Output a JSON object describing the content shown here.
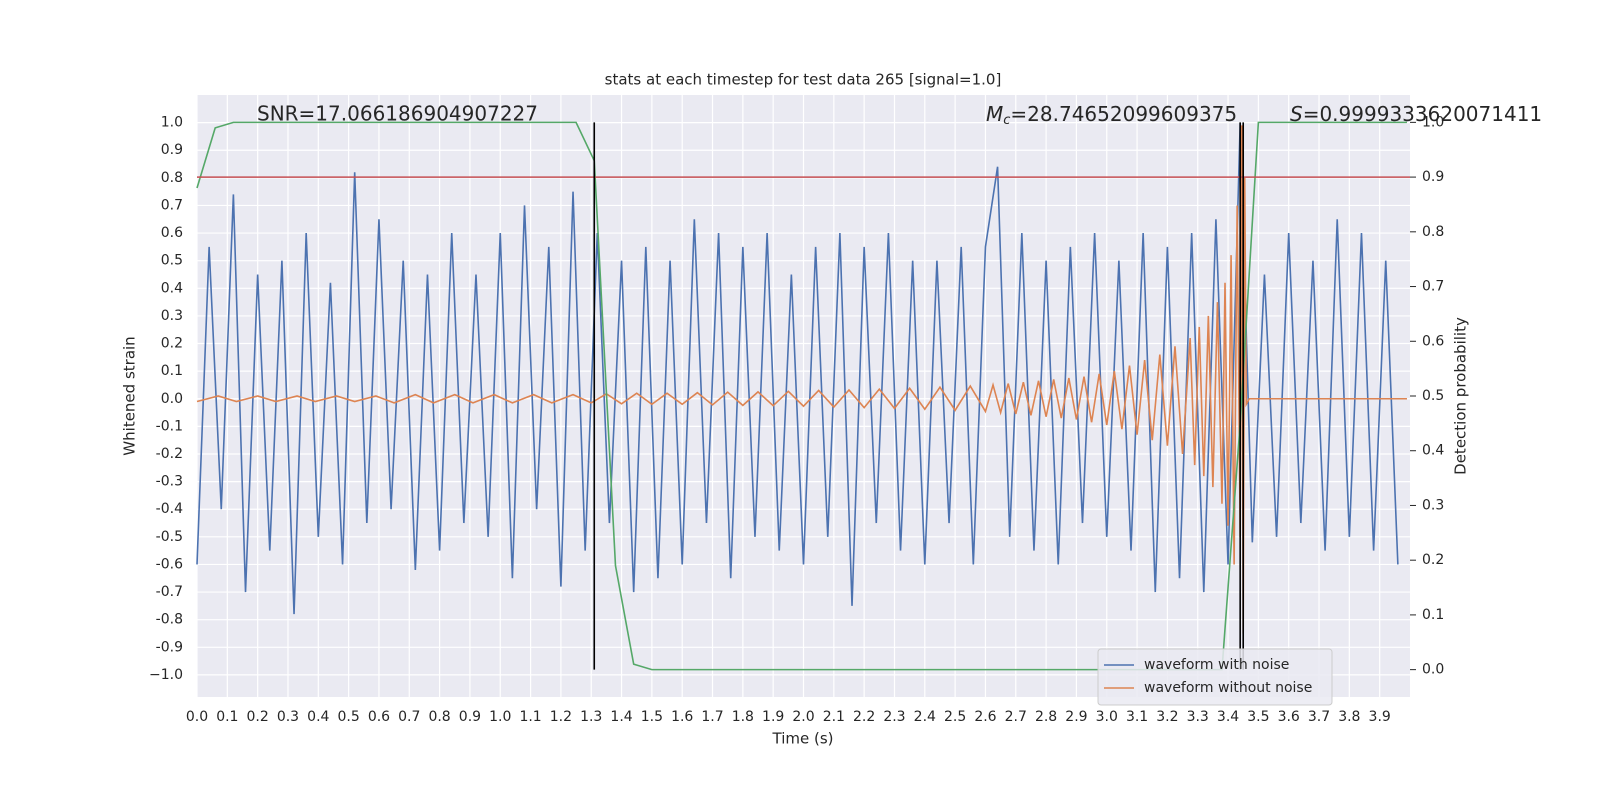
{
  "chart_data": {
    "type": "line",
    "title": "stats at each timestep for test data 265 [signal=1.0]",
    "x_label": "Time (s)",
    "y_label": "Whitened strain",
    "y2_label": "Detection probability",
    "xlim": [
      0,
      4.0
    ],
    "ylim": [
      -1.08,
      1.1
    ],
    "y2lim": [
      -0.05,
      1.05
    ],
    "xticks": [
      {
        "value": 0,
        "label": "0.0"
      },
      0.1,
      0.2,
      0.3,
      0.4,
      0.5,
      0.6,
      0.7,
      0.8,
      0.9,
      {
        "value": 1,
        "label": "1.0"
      },
      1.1,
      1.2,
      1.3,
      1.4,
      1.5,
      1.6,
      1.7,
      1.8,
      1.9,
      {
        "value": 2,
        "label": "2.0"
      },
      2.1,
      2.2,
      2.3,
      2.4,
      2.5,
      2.6,
      2.7,
      2.8,
      2.9,
      {
        "value": 3,
        "label": "3.0"
      },
      3.1,
      3.2,
      3.3,
      3.4,
      3.5,
      3.6,
      3.7,
      3.8,
      3.9
    ],
    "yticks": [
      {
        "value": -1,
        "label": "−1.0"
      },
      -0.9,
      -0.8,
      -0.7,
      -0.6,
      -0.5,
      -0.4,
      -0.3,
      -0.2,
      -0.1,
      {
        "value": 0,
        "label": "0.0"
      },
      0.1,
      0.2,
      0.3,
      0.4,
      0.5,
      0.6,
      0.7,
      0.8,
      0.9,
      {
        "value": 1,
        "label": "1.0"
      }
    ],
    "y2ticks": [
      {
        "value": 0,
        "label": "0.0"
      },
      0.1,
      0.2,
      0.3,
      0.4,
      0.5,
      0.6,
      0.7,
      0.8,
      0.9,
      {
        "value": 1,
        "label": "1.0"
      }
    ],
    "grid": true,
    "legend": "lower right",
    "series": [
      {
        "name": "waveform with noise",
        "color": "#4c72b0",
        "x": [
          0,
          0.04,
          0.08,
          0.12,
          0.16,
          0.2,
          0.24,
          0.28,
          0.32,
          0.36,
          0.4,
          0.44,
          0.48,
          0.52,
          0.56,
          0.6,
          0.64,
          0.68,
          0.72,
          0.76,
          0.8,
          0.84,
          0.88,
          0.92,
          0.96,
          1,
          1.04,
          1.08,
          1.12,
          1.16,
          1.2,
          1.24,
          1.28,
          1.32,
          1.36,
          1.4,
          1.44,
          1.48,
          1.52,
          1.56,
          1.6,
          1.64,
          1.68,
          1.72,
          1.76,
          1.8,
          1.84,
          1.88,
          1.92,
          1.96,
          2,
          2.04,
          2.08,
          2.12,
          2.16,
          2.2,
          2.24,
          2.28,
          2.32,
          2.36,
          2.4,
          2.44,
          2.48,
          2.52,
          2.56,
          2.6,
          2.64,
          2.68,
          2.72,
          2.76,
          2.8,
          2.84,
          2.88,
          2.92,
          2.96,
          3,
          3.04,
          3.08,
          3.12,
          3.16,
          3.2,
          3.24,
          3.28,
          3.32,
          3.36,
          3.4,
          3.44,
          3.48,
          3.52,
          3.56,
          3.6,
          3.64,
          3.68,
          3.72,
          3.76,
          3.8,
          3.84,
          3.88,
          3.92,
          3.96
        ],
        "values": [
          -0.6,
          0.55,
          -0.4,
          0.74,
          -0.7,
          0.45,
          -0.55,
          0.5,
          -0.78,
          0.6,
          -0.5,
          0.42,
          -0.6,
          0.82,
          -0.45,
          0.65,
          -0.4,
          0.5,
          -0.62,
          0.45,
          -0.55,
          0.6,
          -0.45,
          0.45,
          -0.5,
          0.6,
          -0.65,
          0.7,
          -0.4,
          0.55,
          -0.68,
          0.75,
          -0.55,
          0.6,
          -0.45,
          0.5,
          -0.7,
          0.55,
          -0.65,
          0.5,
          -0.6,
          0.65,
          -0.45,
          0.6,
          -0.65,
          0.55,
          -0.5,
          0.6,
          -0.55,
          0.45,
          -0.6,
          0.55,
          -0.5,
          0.6,
          -0.75,
          0.55,
          -0.45,
          0.6,
          -0.55,
          0.5,
          -0.6,
          0.5,
          -0.45,
          0.55,
          -0.6,
          0.55,
          0.84,
          -0.5,
          0.6,
          -0.55,
          0.5,
          -0.6,
          0.55,
          -0.45,
          0.6,
          -0.5,
          0.5,
          -0.55,
          0.6,
          -0.7,
          0.55,
          -0.65,
          0.6,
          -0.7,
          0.65,
          -0.6,
          1.0,
          -0.52,
          0.45,
          -0.5,
          0.6,
          -0.45,
          0.5,
          -0.55,
          0.65,
          -0.5,
          0.6,
          -0.55,
          0.5,
          -0.6
        ]
      },
      {
        "name": "waveform without noise",
        "color": "#dd8452",
        "x": [
          0,
          0.07,
          0.13,
          0.2,
          0.26,
          0.33,
          0.39,
          0.46,
          0.52,
          0.59,
          0.65,
          0.72,
          0.78,
          0.85,
          0.91,
          0.98,
          1.04,
          1.11,
          1.17,
          1.24,
          1.3,
          1.35,
          1.4,
          1.45,
          1.5,
          1.55,
          1.6,
          1.65,
          1.7,
          1.75,
          1.8,
          1.85,
          1.9,
          1.95,
          2.0,
          2.05,
          2.1,
          2.15,
          2.2,
          2.25,
          2.3,
          2.35,
          2.4,
          2.45,
          2.5,
          2.55,
          2.6,
          2.625,
          2.65,
          2.675,
          2.7,
          2.725,
          2.75,
          2.775,
          2.8,
          2.825,
          2.85,
          2.875,
          2.9,
          2.925,
          2.95,
          2.975,
          3.0,
          3.025,
          3.05,
          3.075,
          3.1,
          3.125,
          3.15,
          3.175,
          3.2,
          3.225,
          3.25,
          3.275,
          3.29,
          3.305,
          3.32,
          3.335,
          3.35,
          3.365,
          3.38,
          3.39,
          3.4,
          3.41,
          3.42,
          3.43,
          3.44,
          3.445,
          3.45,
          3.455,
          3.46,
          3.47,
          3.99
        ],
        "values": [
          -0.01,
          0.01,
          -0.01,
          0.01,
          -0.01,
          0.01,
          -0.01,
          0.01,
          -0.01,
          0.01,
          -0.015,
          0.015,
          -0.015,
          0.015,
          -0.015,
          0.015,
          -0.015,
          0.015,
          -0.015,
          0.015,
          -0.015,
          0.018,
          -0.018,
          0.02,
          -0.02,
          0.02,
          -0.02,
          0.022,
          -0.022,
          0.024,
          -0.024,
          0.025,
          -0.025,
          0.027,
          -0.027,
          0.03,
          -0.03,
          0.032,
          -0.032,
          0.035,
          -0.035,
          0.038,
          -0.038,
          0.042,
          -0.042,
          0.046,
          -0.046,
          0.05,
          -0.05,
          0.055,
          -0.055,
          0.06,
          -0.06,
          0.065,
          -0.065,
          0.07,
          -0.07,
          0.075,
          -0.075,
          0.08,
          -0.085,
          0.09,
          -0.095,
          0.1,
          -0.11,
          0.12,
          -0.13,
          0.14,
          -0.15,
          0.16,
          -0.17,
          0.19,
          -0.2,
          0.22,
          -0.24,
          0.26,
          -0.28,
          0.3,
          -0.32,
          0.35,
          -0.38,
          0.42,
          -0.46,
          0.52,
          -0.6,
          0.7,
          -0.5,
          0.99,
          -0.85,
          0.8,
          -0.02,
          0.0,
          0.0
        ]
      },
      {
        "color": "#55a868",
        "axis": "y2",
        "x": [
          0,
          0.06,
          0.12,
          1.25,
          1.31,
          1.38,
          1.44,
          1.5,
          3.38,
          3.44,
          3.5,
          3.99
        ],
        "values": [
          0.88,
          0.99,
          1.0,
          1.0,
          0.93,
          0.19,
          0.01,
          0.0,
          0.0,
          0.45,
          1.0,
          1.0
        ]
      }
    ],
    "threshold": {
      "value": 0.9,
      "axis": "y2",
      "color": "#c44e52"
    },
    "vlines": {
      "x": [
        1.31,
        3.44,
        3.45
      ],
      "ymin": 0,
      "ymax": 1,
      "axis": "y2",
      "color": "#000000"
    },
    "annotations": [
      {
        "text": "SNR=17.066186904907227"
      },
      {
        "symbol": "M",
        "subscript": "c",
        "text": "=28.74652099609375"
      },
      {
        "symbol": "S",
        "text": "=0.9999333620071411"
      }
    ]
  }
}
